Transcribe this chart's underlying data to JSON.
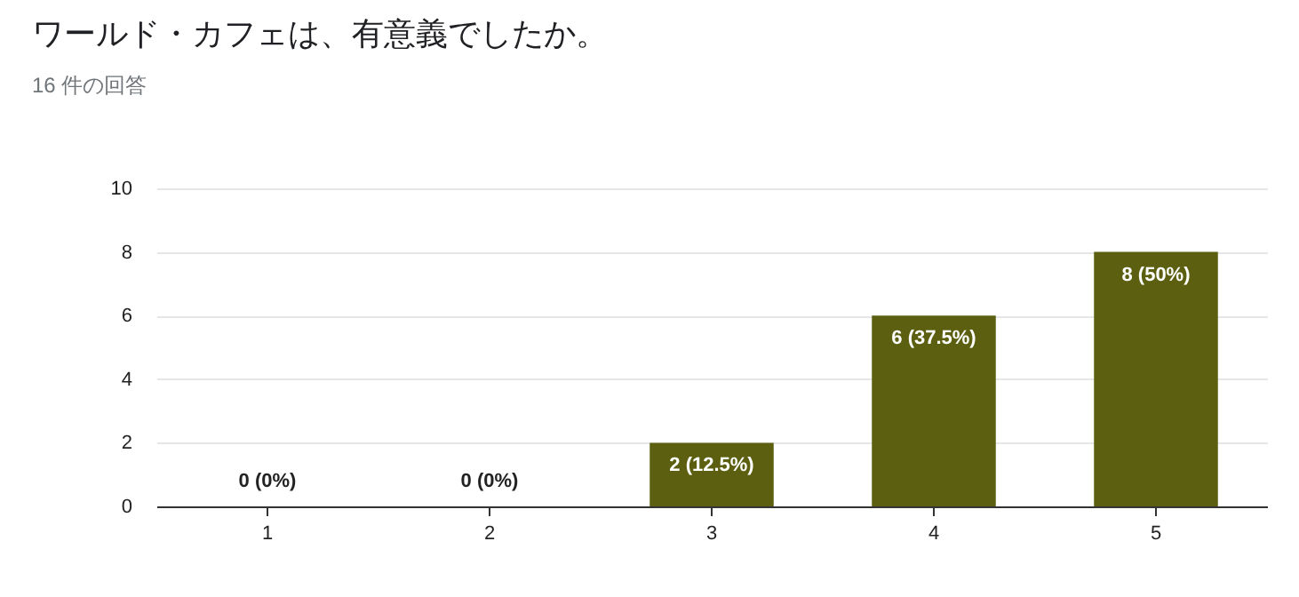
{
  "chart_data": {
    "type": "bar",
    "title": "ワールド・カフェは、有意義でしたか。",
    "subtitle": "16 件の回答",
    "categories": [
      "1",
      "2",
      "3",
      "4",
      "5"
    ],
    "values": [
      0,
      0,
      2,
      6,
      8
    ],
    "value_labels": [
      "0 (0%)",
      "0 (0%)",
      "2 (12.5%)",
      "6 (37.5%)",
      "8 (50%)"
    ],
    "color": "#5b5f0f",
    "ylim": [
      0,
      10
    ],
    "yticks": [
      0,
      2,
      4,
      6,
      8,
      10
    ],
    "grid": "y"
  }
}
